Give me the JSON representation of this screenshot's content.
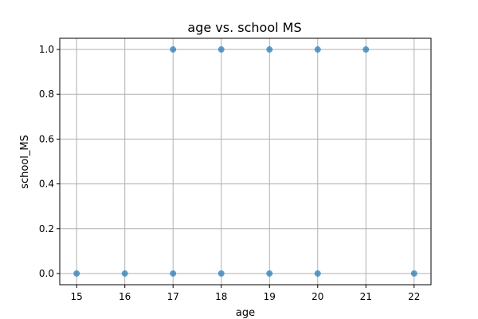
{
  "chart_data": {
    "type": "scatter",
    "title": "age vs. school MS",
    "xlabel": "age",
    "ylabel": "school_MS",
    "xlim": [
      14.65,
      22.35
    ],
    "ylim": [
      -0.05,
      1.05
    ],
    "xticks": [
      15,
      16,
      17,
      18,
      19,
      20,
      21,
      22
    ],
    "yticks": [
      0.0,
      0.2,
      0.4,
      0.6,
      0.8,
      1.0
    ],
    "ytick_labels": [
      "0.0",
      "0.2",
      "0.4",
      "0.6",
      "0.8",
      "1.0"
    ],
    "grid": true,
    "marker_color": "#1f77b4",
    "marker_alpha": 0.7,
    "points": [
      {
        "x": 15,
        "y": 0
      },
      {
        "x": 16,
        "y": 0
      },
      {
        "x": 17,
        "y": 0
      },
      {
        "x": 18,
        "y": 0
      },
      {
        "x": 19,
        "y": 0
      },
      {
        "x": 20,
        "y": 0
      },
      {
        "x": 22,
        "y": 0
      },
      {
        "x": 17,
        "y": 1
      },
      {
        "x": 18,
        "y": 1
      },
      {
        "x": 19,
        "y": 1
      },
      {
        "x": 20,
        "y": 1
      },
      {
        "x": 21,
        "y": 1
      }
    ]
  }
}
